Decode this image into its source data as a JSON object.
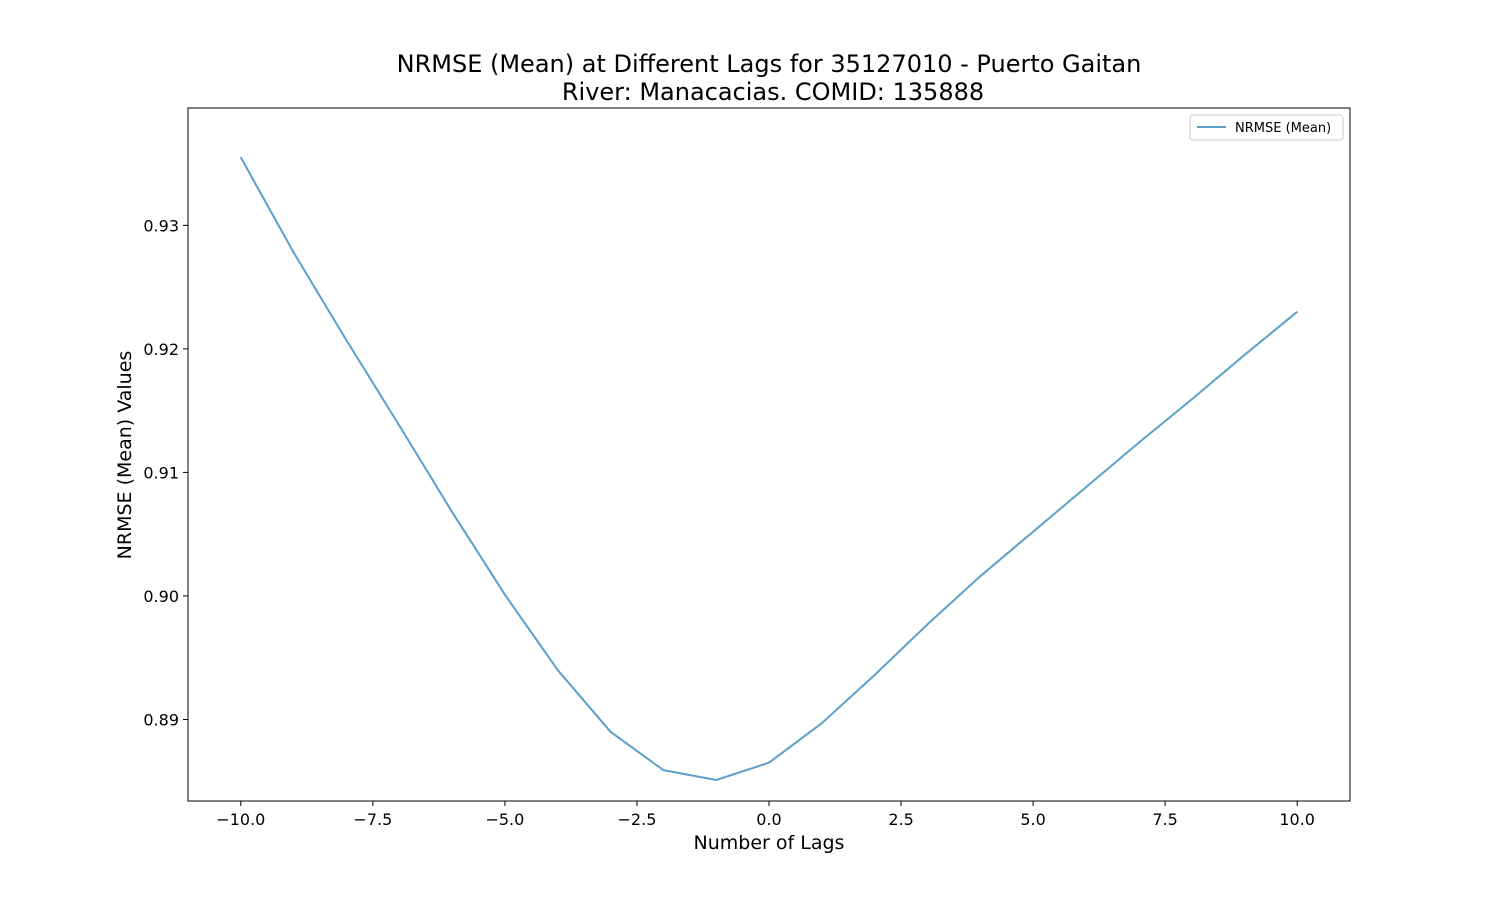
{
  "chart_data": {
    "type": "line",
    "title": "NRMSE (Mean) at Different Lags for 35127010 - Puerto Gaitan",
    "subtitle": "River: Manacacias. COMID: 135888",
    "xlabel": "Number of Lags",
    "ylabel": "NRMSE (Mean) Values",
    "xlim": [
      -11,
      11
    ],
    "ylim": [
      0.8834,
      0.9395
    ],
    "xticks": [
      -10.0,
      -7.5,
      -5.0,
      -2.5,
      0.0,
      2.5,
      5.0,
      7.5,
      10.0
    ],
    "xtick_labels": [
      "−10.0",
      "−7.5",
      "−5.0",
      "−2.5",
      "0.0",
      "2.5",
      "5.0",
      "7.5",
      "10.0"
    ],
    "yticks": [
      0.89,
      0.9,
      0.91,
      0.92,
      0.93
    ],
    "ytick_labels": [
      "0.89",
      "0.90",
      "0.91",
      "0.92",
      "0.93"
    ],
    "grid": false,
    "legend_position": "top-right",
    "series": [
      {
        "name": "NRMSE (Mean)",
        "color": "#5b9fcb",
        "x": [
          -10,
          -9,
          -8,
          -7,
          -6,
          -5,
          -4,
          -3,
          -2,
          -1,
          0,
          1,
          2,
          3,
          4,
          5,
          6,
          7,
          8,
          9,
          10
        ],
        "y": [
          0.9355,
          0.9278,
          0.9207,
          0.9138,
          0.9068,
          0.9001,
          0.894,
          0.889,
          0.8859,
          0.8851,
          0.8865,
          0.8897,
          0.8936,
          0.8977,
          0.9016,
          0.9052,
          0.9088,
          0.9124,
          0.9159,
          0.9195,
          0.923
        ]
      }
    ]
  }
}
